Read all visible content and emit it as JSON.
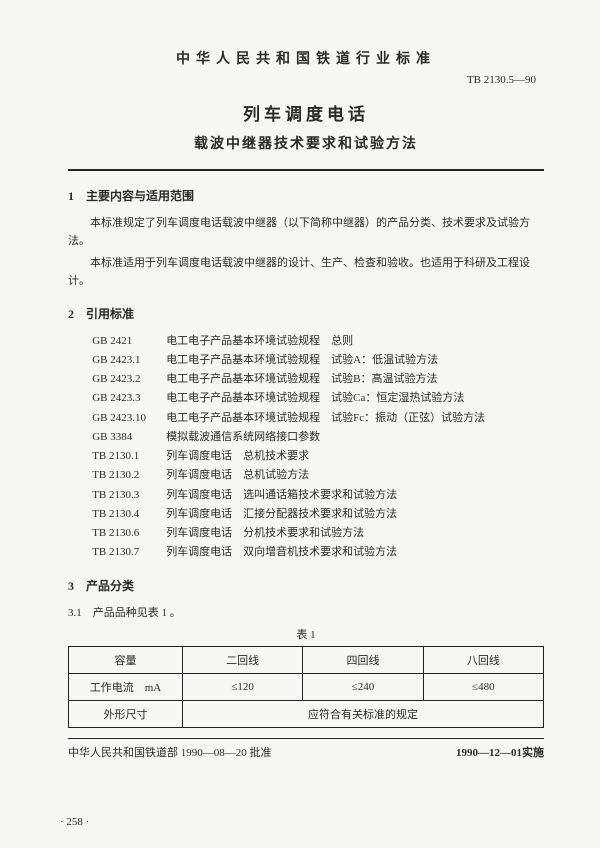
{
  "header": {
    "org": "中华人民共和国铁道行业标准",
    "docNumber": "TB 2130.5—90",
    "titleMain": "列车调度电话",
    "titleSub": "载波中继器技术要求和试验方法"
  },
  "section1": {
    "head": "1　主要内容与适用范围",
    "p1": "本标准规定了列车调度电话载波中继器（以下简称中继器）的产品分类、技术要求及试验方法。",
    "p2": "本标准适用于列车调度电话载波中继器的设计、生产、检查和验收。也适用于科研及工程设计。"
  },
  "section2": {
    "head": "2　引用标准",
    "refs": [
      {
        "code": "GB 2421",
        "text": "电工电子产品基本环境试验规程　总则"
      },
      {
        "code": "GB 2423.1",
        "text": "电工电子产品基本环境试验规程　试验A：低温试验方法"
      },
      {
        "code": "GB 2423.2",
        "text": "电工电子产品基本环境试验规程　试验B：高温试验方法"
      },
      {
        "code": "GB 2423.3",
        "text": "电工电子产品基本环境试验规程　试验Ca：恒定湿热试验方法"
      },
      {
        "code": "GB 2423.10",
        "text": "电工电子产品基本环境试验规程　试验Fc：振动（正弦）试验方法"
      },
      {
        "code": "GB 3384",
        "text": "模拟载波通信系统网络接口参数"
      },
      {
        "code": "TB 2130.1",
        "text": "列车调度电话　总机技术要求"
      },
      {
        "code": "TB 2130.2",
        "text": "列车调度电话　总机试验方法"
      },
      {
        "code": "TB 2130.3",
        "text": "列车调度电话　选叫通话箱技术要求和试验方法"
      },
      {
        "code": "TB 2130.4",
        "text": "列车调度电话　汇接分配器技术要求和试验方法"
      },
      {
        "code": "TB 2130.6",
        "text": "列车调度电话　分机技术要求和试验方法"
      },
      {
        "code": "TB 2130.7",
        "text": "列车调度电话　双向增音机技术要求和试验方法"
      }
    ]
  },
  "section3": {
    "head": "3　产品分类",
    "p31": "3.1　产品品种见表 1 。",
    "tableCaption": "表 1",
    "table": {
      "r1": {
        "lbl": "容量",
        "c1": "二回线",
        "c2": "四回线",
        "c3": "八回线"
      },
      "r2": {
        "lbl": "工作电流　mA",
        "c1": "≤120",
        "c2": "≤240",
        "c3": "≤480"
      },
      "r3": {
        "lbl": "外形尺寸",
        "merged": "应符合有关标准的规定"
      }
    }
  },
  "footer": {
    "left": "中华人民共和国铁道部 1990—08—20 批准",
    "right": "1990—12—01实施",
    "pageNum": "· 258 ·"
  }
}
